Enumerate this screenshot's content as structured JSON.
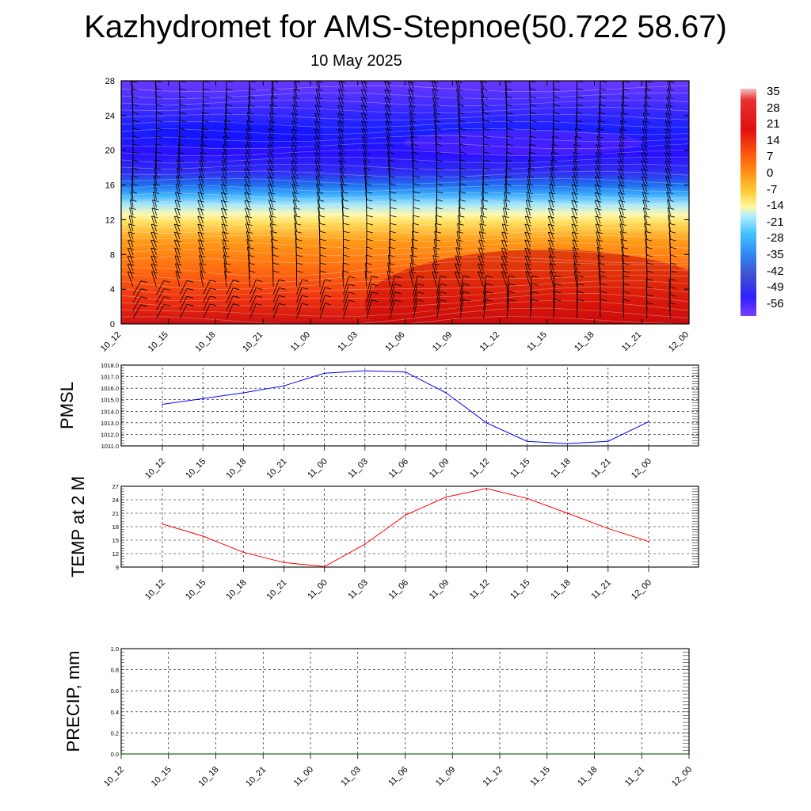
{
  "title": "Kazhydromet for AMS-Stepnoe(50.722 58.67)",
  "subtitle": "10 May 2025",
  "colorbar": {
    "labels": [
      "35",
      "28",
      "21",
      "14",
      "7",
      "0",
      "-7",
      "-14",
      "-21",
      "-28",
      "-35",
      "-42",
      "-49",
      "-56"
    ]
  },
  "chart_data": [
    {
      "type": "heatmap",
      "title": "",
      "ylim": [
        0,
        28
      ],
      "yticks": [
        "0",
        "4",
        "8",
        "12",
        "16",
        "20",
        "24",
        "28"
      ],
      "xticks": [
        "10_12",
        "10_15",
        "10_18",
        "10_21",
        "11_00",
        "11_03",
        "11_06",
        "11_09",
        "11_12",
        "11_15",
        "11_18",
        "11_21",
        "12_00"
      ],
      "wind_barbs": true,
      "colorbar_range": [
        -56,
        35
      ]
    },
    {
      "type": "line",
      "ylabel": "PMSL",
      "ylim": [
        1011.0,
        1018.0
      ],
      "yticks": [
        "1011.0",
        "1012.0",
        "1013.0",
        "1014.0",
        "1015.0",
        "1016.0",
        "1017.0",
        "1018.0"
      ],
      "xticks": [
        "10_12",
        "10_15",
        "10_18",
        "10_21",
        "11_00",
        "11_03",
        "11_06",
        "11_09",
        "11_12",
        "11_15",
        "11_18",
        "11_21",
        "12_00"
      ],
      "series": [
        {
          "color": "#0000ff",
          "values": [
            1014.6,
            1015.1,
            1015.6,
            1016.2,
            1017.3,
            1017.5,
            1017.4,
            1015.6,
            1013.0,
            1011.4,
            1011.2,
            1011.4,
            1013.1
          ]
        }
      ],
      "grid": true
    },
    {
      "type": "line",
      "ylabel": "TEMP at 2 M",
      "ylim": [
        9,
        27
      ],
      "yticks": [
        "9",
        "12",
        "15",
        "18",
        "21",
        "24",
        "27"
      ],
      "xticks": [
        "10_12",
        "10_15",
        "10_18",
        "10_21",
        "11_00",
        "11_03",
        "11_06",
        "11_09",
        "11_12",
        "11_15",
        "11_18",
        "11_21",
        "12_00"
      ],
      "series": [
        {
          "color": "#ff0000",
          "values": [
            18.6,
            15.9,
            12.3,
            10.0,
            9.1,
            14.1,
            20.6,
            24.6,
            26.5,
            24.3,
            21.0,
            17.6,
            14.7
          ]
        }
      ],
      "grid": true
    },
    {
      "type": "line",
      "ylabel": "PRECIP, mm",
      "ylim": [
        0.0,
        1.0
      ],
      "yticks": [
        "0.0",
        "0.2",
        "0.4",
        "0.6",
        "0.8",
        "1.0"
      ],
      "xticks": [
        "10_12",
        "10_15",
        "10_18",
        "10_21",
        "11_00",
        "11_03",
        "11_06",
        "11_09",
        "11_12",
        "11_15",
        "11_18",
        "11_21",
        "12_00"
      ],
      "series": [
        {
          "color": "#006400",
          "values": [
            0,
            0,
            0,
            0,
            0,
            0,
            0,
            0,
            0,
            0,
            0,
            0,
            0
          ]
        }
      ],
      "grid": true
    }
  ]
}
